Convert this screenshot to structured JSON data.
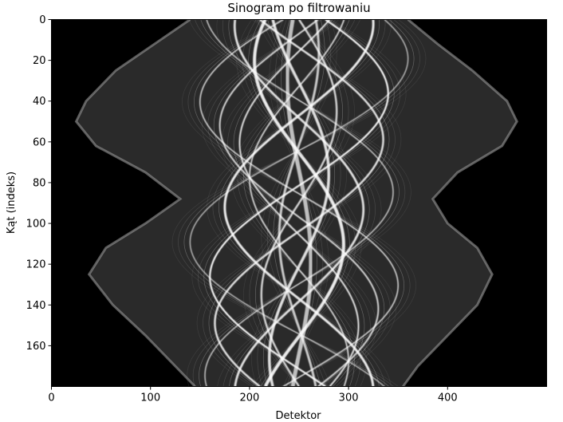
{
  "chart_data": {
    "type": "heatmap",
    "title": "Sinogram po filtrowaniu",
    "xlabel": "Detektor",
    "ylabel": "Kąt (indeks)",
    "xlim": [
      0,
      500
    ],
    "ylim": [
      180,
      0
    ],
    "y_inverted": true,
    "xticks": [
      0,
      100,
      200,
      300,
      400
    ],
    "yticks": [
      0,
      20,
      40,
      60,
      80,
      100,
      120,
      140,
      160
    ],
    "colormap": "gray",
    "grid": false,
    "legend": "none",
    "envelope_left": [
      {
        "angle": 0,
        "detector": 140
      },
      {
        "angle": 10,
        "detector": 110
      },
      {
        "angle": 25,
        "detector": 65
      },
      {
        "angle": 40,
        "detector": 35
      },
      {
        "angle": 50,
        "detector": 25
      },
      {
        "angle": 62,
        "detector": 45
      },
      {
        "angle": 75,
        "detector": 95
      },
      {
        "angle": 88,
        "detector": 130
      },
      {
        "angle": 100,
        "detector": 95
      },
      {
        "angle": 112,
        "detector": 55
      },
      {
        "angle": 125,
        "detector": 38
      },
      {
        "angle": 140,
        "detector": 62
      },
      {
        "angle": 155,
        "detector": 95
      },
      {
        "angle": 170,
        "detector": 125
      },
      {
        "angle": 180,
        "detector": 145
      }
    ],
    "envelope_right": [
      {
        "angle": 0,
        "detector": 360
      },
      {
        "angle": 12,
        "detector": 390
      },
      {
        "angle": 25,
        "detector": 425
      },
      {
        "angle": 40,
        "detector": 460
      },
      {
        "angle": 50,
        "detector": 470
      },
      {
        "angle": 62,
        "detector": 455
      },
      {
        "angle": 75,
        "detector": 410
      },
      {
        "angle": 88,
        "detector": 385
      },
      {
        "angle": 100,
        "detector": 400
      },
      {
        "angle": 112,
        "detector": 430
      },
      {
        "angle": 125,
        "detector": 445
      },
      {
        "angle": 140,
        "detector": 430
      },
      {
        "angle": 155,
        "detector": 400
      },
      {
        "angle": 170,
        "detector": 370
      },
      {
        "angle": 180,
        "detector": 355
      }
    ],
    "sinusoids": [
      {
        "center": 250,
        "amplitude": 90,
        "phase": 0.3,
        "width": 2.2,
        "opacity": 0.95
      },
      {
        "center": 250,
        "amplitude": 75,
        "phase": 1.5,
        "width": 3.0,
        "opacity": 0.9
      },
      {
        "center": 250,
        "amplitude": 60,
        "phase": 2.6,
        "width": 2.0,
        "opacity": 0.85
      },
      {
        "center": 250,
        "amplitude": 45,
        "phase": 4.0,
        "width": 4.0,
        "opacity": 0.9
      },
      {
        "center": 250,
        "amplitude": 30,
        "phase": 5.2,
        "width": 3.5,
        "opacity": 0.85
      },
      {
        "center": 250,
        "amplitude": 100,
        "phase": 3.3,
        "width": 1.6,
        "opacity": 0.8
      },
      {
        "center": 250,
        "amplitude": 85,
        "phase": 5.8,
        "width": 2.5,
        "opacity": 0.85
      },
      {
        "center": 250,
        "amplitude": 20,
        "phase": 1.0,
        "width": 3.0,
        "opacity": 0.75
      },
      {
        "center": 250,
        "amplitude": 110,
        "phase": 0.9,
        "width": 1.4,
        "opacity": 0.7
      },
      {
        "center": 250,
        "amplitude": 65,
        "phase": 4.6,
        "width": 2.8,
        "opacity": 0.85
      },
      {
        "center": 250,
        "amplitude": 50,
        "phase": 2.0,
        "width": 1.8,
        "opacity": 0.8
      },
      {
        "center": 250,
        "amplitude": 95,
        "phase": 4.9,
        "width": 1.5,
        "opacity": 0.75
      },
      {
        "center": 250,
        "amplitude": 38,
        "phase": 0.0,
        "width": 2.4,
        "opacity": 0.8
      },
      {
        "center": 250,
        "amplitude": 80,
        "phase": 2.9,
        "width": 2.0,
        "opacity": 0.8
      },
      {
        "center": 250,
        "amplitude": 12,
        "phase": 3.7,
        "width": 5.0,
        "opacity": 0.7
      }
    ]
  }
}
